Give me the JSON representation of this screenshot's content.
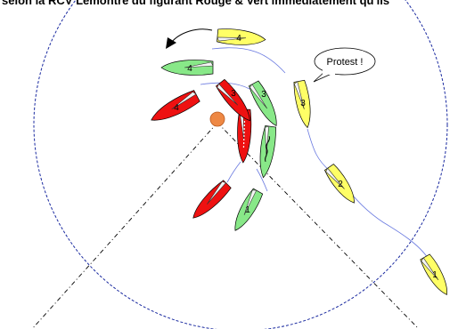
{
  "caption": "selon la RCV Lémontre du figurant Rouge & Vert immédiatement qu'ils",
  "bubble": {
    "text": "Protest !"
  },
  "colors": {
    "red": "#ee1111",
    "green": "#88e888",
    "yellow": "#ffff66",
    "mark": "#ee8844",
    "circle": "#1a2aa0",
    "track": "#6a7ae0"
  },
  "boats": [
    {
      "color": "yellow",
      "number": "1"
    },
    {
      "color": "yellow",
      "number": "2"
    },
    {
      "color": "yellow",
      "number": "3"
    },
    {
      "color": "yellow",
      "number": "4"
    },
    {
      "color": "green",
      "number": "1"
    },
    {
      "color": "green",
      "number": "2"
    },
    {
      "color": "green",
      "number": "3"
    },
    {
      "color": "green",
      "number": "4"
    },
    {
      "color": "red",
      "number": "1"
    },
    {
      "color": "red",
      "number": "2"
    },
    {
      "color": "red",
      "number": "3"
    },
    {
      "color": "red",
      "number": "4"
    }
  ]
}
